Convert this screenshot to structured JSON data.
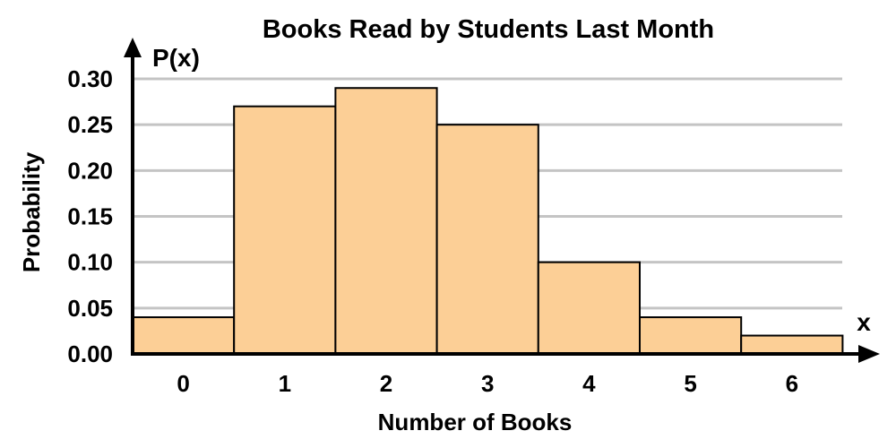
{
  "chart_data": {
    "type": "bar",
    "title": "Books Read by Students Last Month",
    "xlabel": "Number of Books",
    "ylabel": "Probability",
    "x_axis_symbol": "x",
    "y_axis_symbol": "P(x)",
    "categories": [
      "0",
      "1",
      "2",
      "3",
      "4",
      "5",
      "6"
    ],
    "values": [
      0.04,
      0.27,
      0.29,
      0.25,
      0.1,
      0.04,
      0.02
    ],
    "y_ticks": [
      "0.00",
      "0.05",
      "0.10",
      "0.15",
      "0.20",
      "0.25",
      "0.30"
    ],
    "ylim": [
      0,
      0.3
    ],
    "grid": true,
    "bar_color": "#fccf96",
    "grid_color": "#c4c4c4"
  }
}
